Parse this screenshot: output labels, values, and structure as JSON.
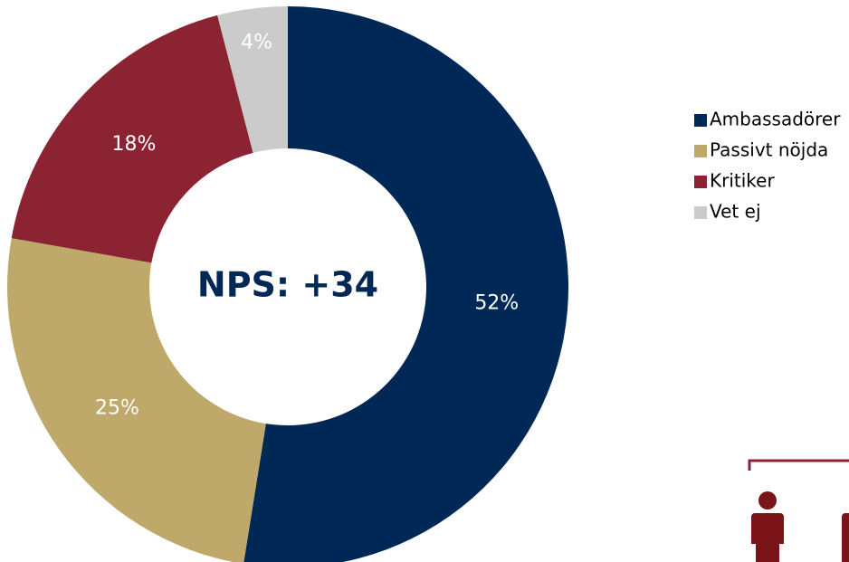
{
  "chart_data": {
    "type": "donut",
    "center_label": "NPS: +34",
    "categories": [
      "Ambassadörer",
      "Passivt nöjda",
      "Kritiker",
      "Vet ej"
    ],
    "values": [
      52,
      25,
      18,
      4
    ],
    "value_labels": [
      "52%",
      "25%",
      "18%",
      "4%"
    ],
    "colors": [
      "#002856",
      "#bfa96a",
      "#8b2332",
      "#cbcbcb"
    ],
    "legend": "right"
  }
}
